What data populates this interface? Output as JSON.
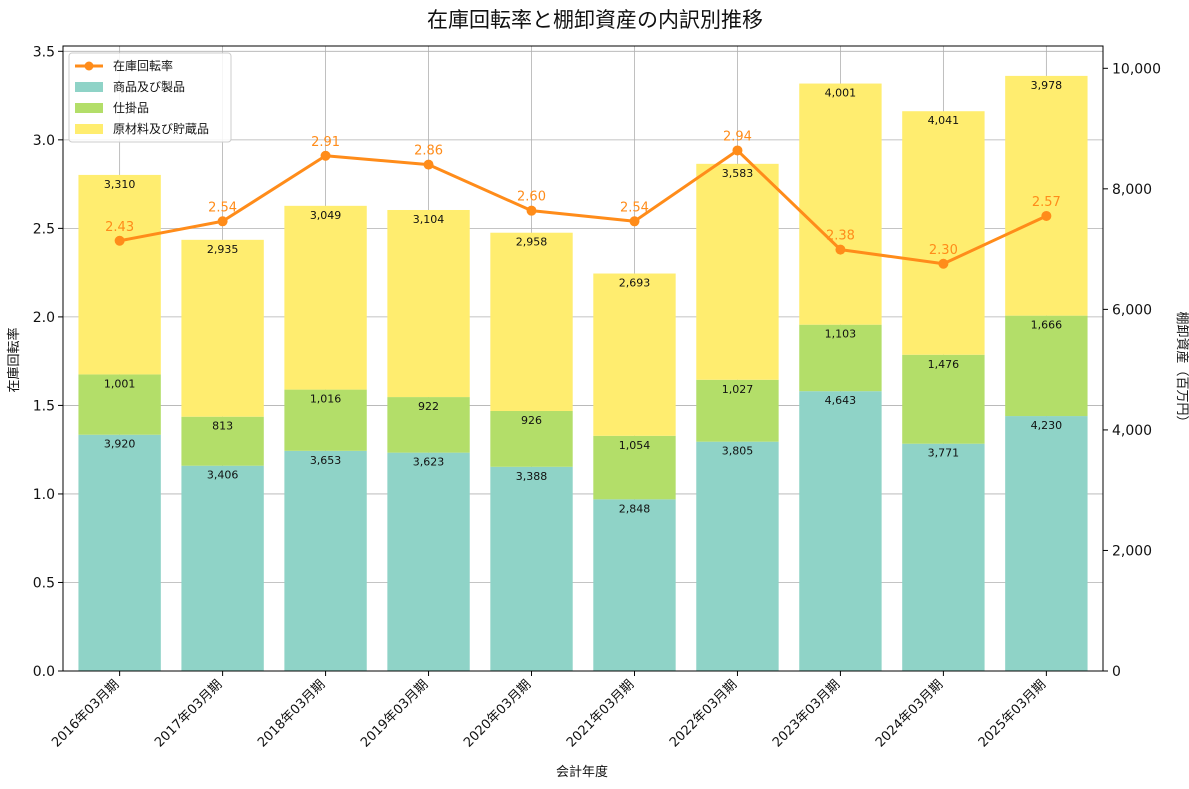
{
  "chart_data": {
    "type": "bar",
    "title": "在庫回転率と棚卸資産の内訳別推移",
    "xlabel": "会計年度",
    "ylabel_left": "在庫回転率",
    "ylabel_right": "棚卸資産（百万円）",
    "categories": [
      "2016年03月期",
      "2017年03月期",
      "2018年03月期",
      "2019年03月期",
      "2020年03月期",
      "2021年03月期",
      "2022年03月期",
      "2023年03月期",
      "2024年03月期",
      "2025年03月期"
    ],
    "stacked_series": [
      {
        "name": "商品及び製品",
        "color": "#8fd3c7",
        "values": [
          3920,
          3406,
          3653,
          3623,
          3388,
          2848,
          3805,
          4643,
          3771,
          4230
        ],
        "labels": [
          "3,920",
          "3,406",
          "3,653",
          "3,623",
          "3,388",
          "2,848",
          "3,805",
          "4,643",
          "3,771",
          "4,230"
        ]
      },
      {
        "name": "仕掛品",
        "color": "#b3de69",
        "values": [
          1001,
          813,
          1016,
          922,
          926,
          1054,
          1027,
          1103,
          1476,
          1666
        ],
        "labels": [
          "1,001",
          "813",
          "1,016",
          "922",
          "926",
          "1,054",
          "1,027",
          "1,103",
          "1,476",
          "1,666"
        ]
      },
      {
        "name": "原材料及び貯蔵品",
        "color": "#ffed6f",
        "values": [
          3310,
          2935,
          3049,
          3104,
          2958,
          2693,
          3583,
          4001,
          4041,
          3978
        ],
        "labels": [
          "3,310",
          "2,935",
          "3,049",
          "3,104",
          "2,958",
          "2,693",
          "3,583",
          "4,001",
          "4,041",
          "3,978"
        ]
      }
    ],
    "line_series": {
      "name": "在庫回転率",
      "color": "#ff8c1a",
      "values": [
        2.43,
        2.54,
        2.91,
        2.86,
        2.6,
        2.54,
        2.94,
        2.38,
        2.3,
        2.57
      ],
      "labels": [
        "2.43",
        "2.54",
        "2.91",
        "2.86",
        "2.60",
        "2.54",
        "2.94",
        "2.38",
        "2.30",
        "2.57"
      ]
    },
    "y_left": {
      "min": 0,
      "max": 3.53,
      "ticks": [
        0.0,
        0.5,
        1.0,
        1.5,
        2.0,
        2.5,
        3.0,
        3.5
      ],
      "tick_labels": [
        "0.0",
        "0.5",
        "1.0",
        "1.5",
        "2.0",
        "2.5",
        "3.0",
        "3.5"
      ]
    },
    "y_right": {
      "min": 0,
      "max": 10370,
      "ticks": [
        0,
        2000,
        4000,
        6000,
        8000,
        10000
      ],
      "tick_labels": [
        "0",
        "2,000",
        "4,000",
        "6,000",
        "8,000",
        "10,000"
      ]
    },
    "grid": true,
    "legend_position": "top-left"
  }
}
